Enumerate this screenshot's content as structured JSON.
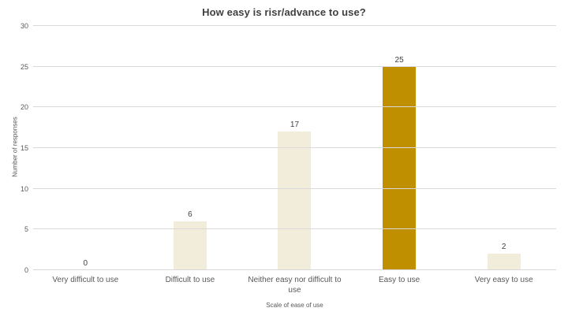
{
  "chart_data": {
    "type": "bar",
    "title": "How easy is risr/advance to use?",
    "xlabel": "Scale of ease of use",
    "ylabel": "Number of responses",
    "categories": [
      "Very difficult to use",
      "Difficult to use",
      "Neither easy nor difficult to use",
      "Easy to use",
      "Very easy to use"
    ],
    "values": [
      0,
      6,
      17,
      25,
      2
    ],
    "data_labels": [
      0,
      6,
      17,
      25,
      2
    ],
    "ylim": [
      0,
      30
    ],
    "y_ticks": [
      0,
      5,
      10,
      15,
      20,
      25,
      30
    ],
    "grid": "horizontal",
    "legend": "none",
    "highlight_index": 3,
    "colors": {
      "bar_default": "#f2ecdb",
      "bar_highlight": "#bf8f00",
      "gridline": "#d9d9d9",
      "axis_line": "#d9d9d9",
      "title_text": "#404040",
      "axis_text": "#595959",
      "value_text": "#404040",
      "background": "#ffffff"
    }
  }
}
